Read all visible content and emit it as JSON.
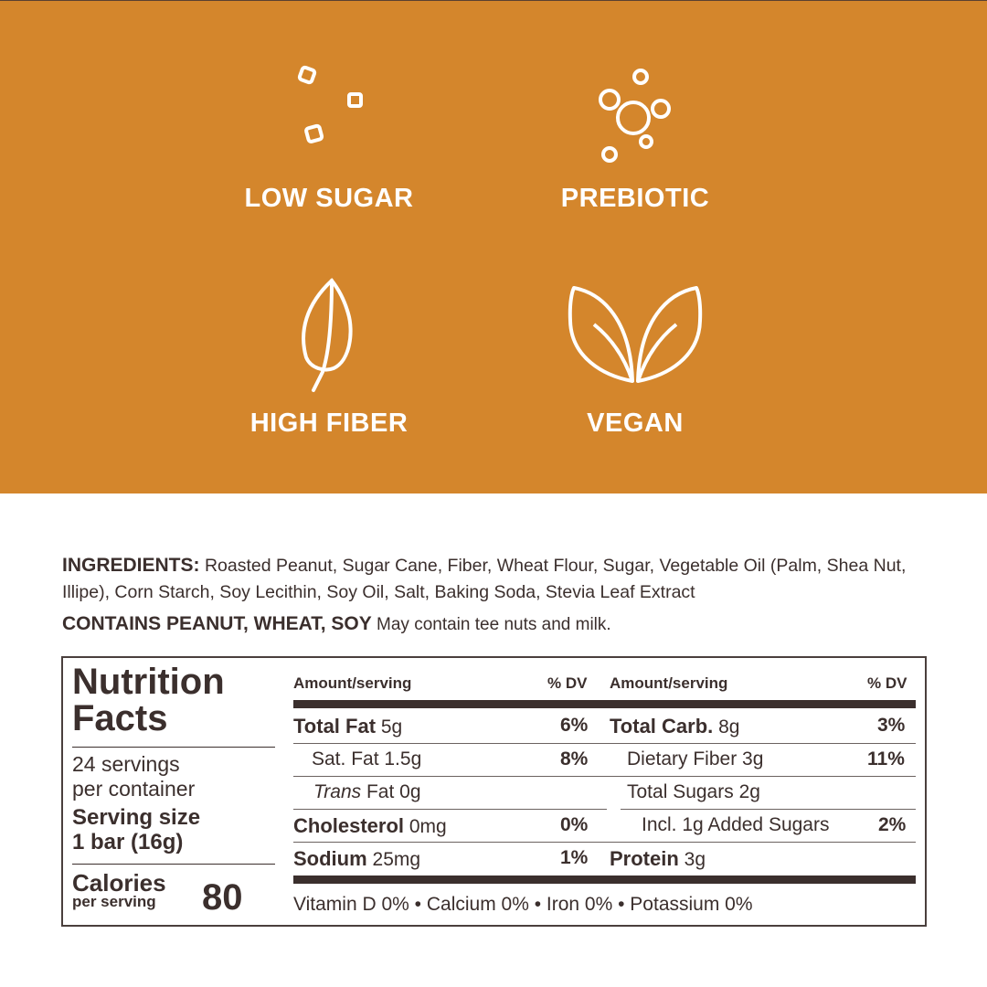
{
  "features": [
    {
      "label": "LOW SUGAR",
      "icon": "sugar-cubes-icon"
    },
    {
      "label": "PREBIOTIC",
      "icon": "bubbles-icon"
    },
    {
      "label": "HIGH FIBER",
      "icon": "leaf-icon"
    },
    {
      "label": "VEGAN",
      "icon": "two-leaves-icon"
    }
  ],
  "colors": {
    "brand": "#D4862C",
    "text": "#3b2f2d"
  },
  "ingredients": {
    "heading": "INGREDIENTS:",
    "text": "Roasted Peanut, Sugar Cane, Fiber, Wheat Flour, Sugar, Vegetable Oil (Palm, Shea Nut, Illipe), Corn Starch, Soy Lecithin, Soy Oil, Salt, Baking Soda, Stevia Leaf Extract",
    "contains": "CONTAINS PEANUT, WHEAT, SOY",
    "may_contain": "May contain tee nuts and milk."
  },
  "nutrition": {
    "title1": "Nutrition",
    "title2": "Facts",
    "servings1": "24 servings",
    "servings2": "per container",
    "serving_size_label": "Serving size",
    "serving_size": "1 bar (16g)",
    "calories_label": "Calories",
    "per_serving": "per serving",
    "calories": "80",
    "amount_header": "Amount/serving",
    "dv_header": "% DV",
    "left": [
      {
        "name": "Total Fat",
        "amount": "5g",
        "dv": "6%"
      },
      {
        "name": "Sat. Fat",
        "amount": "1.5g",
        "dv": "8%"
      },
      {
        "name": "Trans",
        "name2": "Fat",
        "amount": "0g",
        "dv": ""
      },
      {
        "name": "Cholesterol",
        "amount": "0mg",
        "dv": "0%"
      },
      {
        "name": "Sodium",
        "amount": "25mg",
        "dv": "1%"
      }
    ],
    "right": [
      {
        "name": "Total Carb.",
        "amount": "8g",
        "dv": "3%"
      },
      {
        "name": "Dietary Fiber",
        "amount": "3g",
        "dv": "11%"
      },
      {
        "name": "Total Sugars",
        "amount": "2g",
        "dv": ""
      },
      {
        "name": "Incl. 1g Added Sugars",
        "amount": "",
        "dv": "2%"
      },
      {
        "name": "Protein",
        "amount": "3g",
        "dv": ""
      }
    ],
    "vitamins": "Vitamin D 0% • Calcium 0% • Iron 0% • Potassium 0%"
  }
}
